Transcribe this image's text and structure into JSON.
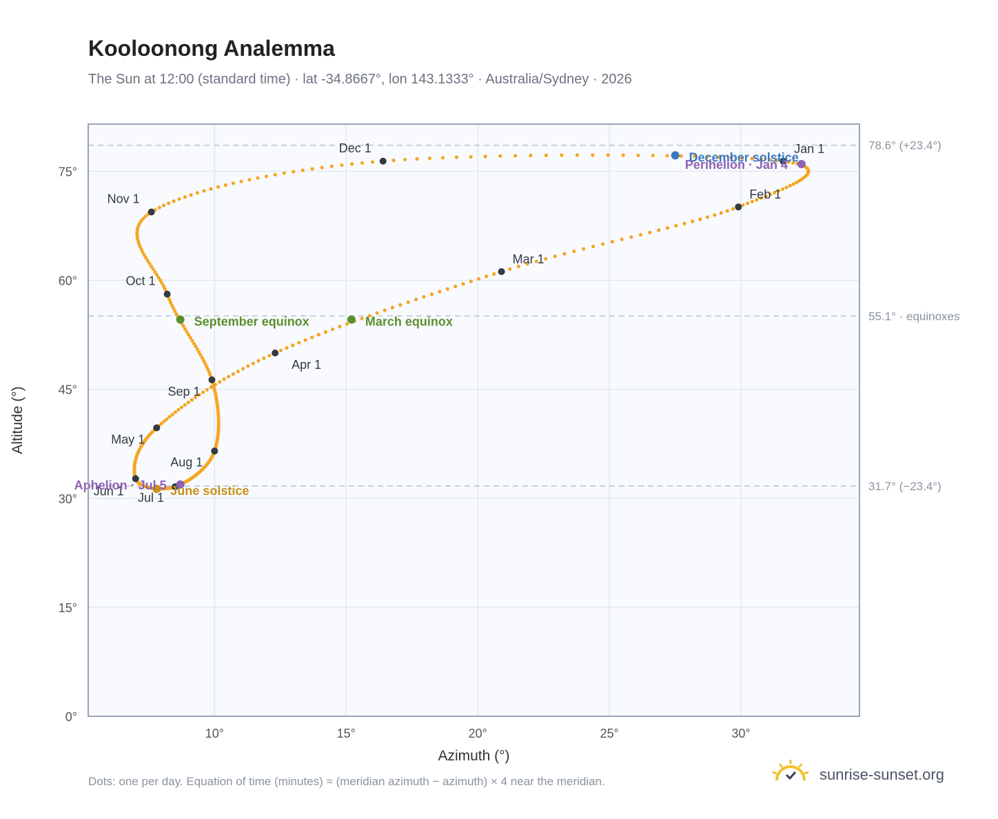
{
  "title": "Kooloonong Analemma",
  "subtitle": "The Sun at 12:00 (standard time) · lat -34.8667°, lon 143.1333° · Australia/Sydney · 2026",
  "footnote": "Dots: one per day. Equation of time (minutes) ≈ (meridian azimuth − azimuth) × 4 near the meridian.",
  "brand": "sunrise-sunset.org",
  "colors": {
    "path": "#f5a623",
    "month_marker": "#333a44",
    "equinox": "#5b8f2e",
    "solstice_june": "#c8901a",
    "solstice_december": "#3b78c0",
    "perihelion": "#8e62b5",
    "grid": "#e3e8ef",
    "plot_bg": "#f8fafd",
    "ref_line": "#b9c4d1",
    "axis_text": "#555555",
    "logo_sun": "#f2c02a",
    "logo_check": "#334155"
  },
  "chart_data": {
    "type": "scatter",
    "xlabel": "Azimuth (°)",
    "ylabel": "Altitude (°)",
    "xlim": [
      5.2,
      34.5
    ],
    "ylim": [
      0,
      81.5
    ],
    "xticks": [
      10,
      15,
      20,
      25,
      30
    ],
    "yticks": [
      0,
      15,
      30,
      45,
      60,
      75
    ],
    "tick_suffix": "°",
    "grid": true,
    "month_points": [
      {
        "label": "Jan 1",
        "az": 31.6,
        "alt": 76.4
      },
      {
        "label": "Feb 1",
        "az": 29.9,
        "alt": 70.1
      },
      {
        "label": "Mar 1",
        "az": 20.9,
        "alt": 61.2
      },
      {
        "label": "Apr 1",
        "az": 12.3,
        "alt": 50.0
      },
      {
        "label": "May 1",
        "az": 7.8,
        "alt": 39.7
      },
      {
        "label": "Jun 1",
        "az": 7.0,
        "alt": 32.7
      },
      {
        "label": "Jul 1",
        "az": 8.5,
        "alt": 31.6
      },
      {
        "label": "Aug 1",
        "az": 10.0,
        "alt": 36.5
      },
      {
        "label": "Sep 1",
        "az": 9.9,
        "alt": 46.3
      },
      {
        "label": "Oct 1",
        "az": 8.2,
        "alt": 58.1
      },
      {
        "label": "Nov 1",
        "az": 7.6,
        "alt": 69.4
      },
      {
        "label": "Dec 1",
        "az": 16.4,
        "alt": 76.4
      }
    ],
    "events": [
      {
        "label": "March equinox",
        "az": 15.2,
        "alt": 54.6,
        "kind": "equinox"
      },
      {
        "label": "September equinox",
        "az": 8.7,
        "alt": 54.6,
        "kind": "equinox"
      },
      {
        "label": "June solstice",
        "az": 7.8,
        "alt": 31.3,
        "kind": "solstice_june"
      },
      {
        "label": "December solstice",
        "az": 27.5,
        "alt": 77.2,
        "kind": "solstice_december"
      },
      {
        "label": "Perihelion · Jan 4",
        "az": 32.3,
        "alt": 76.0,
        "kind": "perihelion"
      },
      {
        "label": "Aphelion · Jul 5",
        "az": 8.7,
        "alt": 31.9,
        "kind": "aphelion"
      }
    ],
    "reference_lines": [
      {
        "alt": 78.6,
        "label": "78.6° (+23.4°)"
      },
      {
        "alt": 55.1,
        "label": "55.1° · equinoxes"
      },
      {
        "alt": 31.7,
        "label": "31.7° (−23.4°)"
      }
    ]
  }
}
